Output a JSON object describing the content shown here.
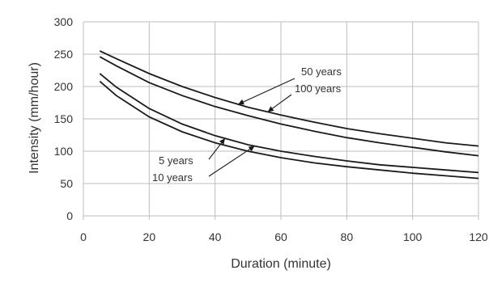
{
  "chart_data": {
    "type": "line",
    "xlabel": "Duration (minute)",
    "ylabel": "Intensity (mm/hour)",
    "xlim": [
      0,
      120
    ],
    "ylim": [
      0,
      300
    ],
    "xticks": [
      0,
      20,
      40,
      60,
      80,
      100,
      120
    ],
    "yticks": [
      0,
      50,
      100,
      150,
      200,
      250,
      300
    ],
    "grid": true,
    "legend": "none",
    "x": [
      5,
      10,
      20,
      30,
      40,
      50,
      60,
      70,
      80,
      90,
      100,
      110,
      120
    ],
    "series": [
      {
        "name": "50 years",
        "values": [
          255,
          243,
          220,
          200,
          183,
          168,
          156,
          145,
          135,
          127,
          120,
          113,
          108
        ]
      },
      {
        "name": "100 years",
        "values": [
          246,
          232,
          206,
          186,
          169,
          155,
          142,
          131,
          121,
          113,
          106,
          99,
          93
        ]
      },
      {
        "name": "5 years",
        "values": [
          220,
          199,
          166,
          142,
          124,
          110,
          100,
          92,
          85,
          79,
          75,
          71,
          67
        ]
      },
      {
        "name": "10 years",
        "values": [
          208,
          186,
          153,
          130,
          113,
          100,
          90,
          82,
          76,
          71,
          66,
          62,
          58
        ]
      }
    ],
    "annotations": [
      {
        "text": "50 years",
        "series": 0,
        "at_x": 47
      },
      {
        "text": "100 years",
        "series": 0,
        "at_x": 56
      },
      {
        "text": "5 years",
        "series": 2,
        "at_x": 43
      },
      {
        "text": "10 years",
        "series": 2,
        "at_x": 52
      }
    ]
  }
}
